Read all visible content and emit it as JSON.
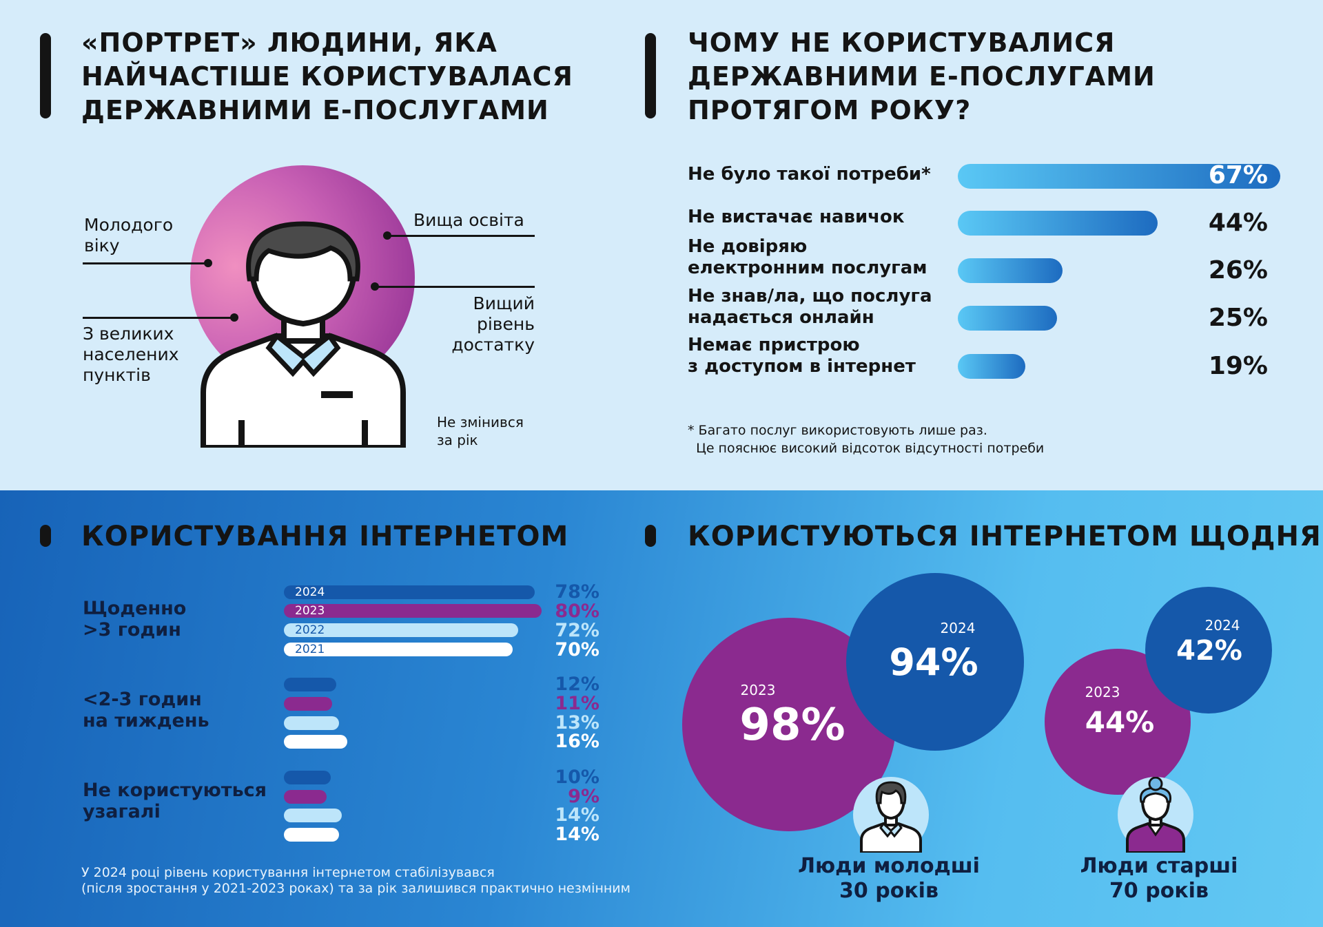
{
  "colors": {
    "accent_purple": "#8b2a8f",
    "accent_blue": "#1558aa",
    "light_blue": "#bde5fa",
    "white": "#ffffff"
  },
  "portrait": {
    "title_lines": [
      "«ПОРТРЕТ» ЛЮДИНИ, ЯКА",
      "НАЙЧАСТІШЕ КОРИСТУВАЛАСЯ",
      "ДЕРЖАВНИМИ Е-ПОСЛУГАМИ"
    ],
    "young_lines": [
      "Молодого",
      "віку"
    ],
    "cities_lines": [
      "З великих",
      "населених",
      "пунктів"
    ],
    "education": "Вища освіта",
    "wealth_lines": [
      "Вищий",
      "рівень",
      "достатку"
    ],
    "unchanged_lines": [
      "Не змінився",
      "за рік"
    ]
  },
  "reasons": {
    "title_lines": [
      "ЧОМУ НЕ КОРИСТУВАЛИСЯ",
      "ДЕРЖАВНИМИ Е-ПОСЛУГАМИ",
      "ПРОТЯГОМ РОКУ?"
    ],
    "items": [
      {
        "label_lines": [
          "Не було такої потреби*"
        ],
        "value": 67,
        "text": "67%"
      },
      {
        "label_lines": [
          "Не вистачає навичок"
        ],
        "value": 44,
        "text": "44%"
      },
      {
        "label_lines": [
          "Не довіряю",
          "електронним послугам"
        ],
        "value": 26,
        "text": "26%"
      },
      {
        "label_lines": [
          "Не знав/ла, що послуга",
          "надається онлайн"
        ],
        "value": 25,
        "text": "25%"
      },
      {
        "label_lines": [
          "Немає пристрою",
          "з доступом в інтернет"
        ],
        "value": 19,
        "text": "19%"
      }
    ],
    "note_lines": [
      "* Багато послуг використовують лише раз.",
      "  Це пояснює високий відсоток відсутності потреби"
    ]
  },
  "internet": {
    "title": "КОРИСТУВАННЯ ІНТЕРНЕТОМ",
    "years": [
      "2024",
      "2023",
      "2022",
      "2021"
    ],
    "year_colors": [
      "#1558aa",
      "#8b2a8f",
      "#bde5fa",
      "#ffffff"
    ],
    "groups": [
      {
        "label_lines": [
          "Щоденно",
          ">3 годин"
        ],
        "values": [
          78,
          80,
          72,
          70
        ],
        "texts": [
          "78%",
          "80%",
          "72%",
          "70%"
        ],
        "show_years": true
      },
      {
        "label_lines": [
          "<2-3 годин",
          "на тиждень"
        ],
        "values": [
          12,
          11,
          13,
          16
        ],
        "texts": [
          "12%",
          "11%",
          "13%",
          "16%"
        ],
        "show_years": false
      },
      {
        "label_lines": [
          "Не користуються",
          "узагалі"
        ],
        "values": [
          10,
          9,
          14,
          14
        ],
        "texts": [
          "10%",
          "9%",
          "14%",
          "14%"
        ],
        "show_years": false
      }
    ],
    "note_lines": [
      "У 2024 році рівень користування інтернетом стабілізувався",
      "(після зростання у 2021-2023 роках) та за рік залишився практично незмінним"
    ]
  },
  "daily": {
    "title": "КОРИСТУЮТЬСЯ ІНТЕРНЕТОМ ЩОДНЯ",
    "young": {
      "y2023": "2023",
      "v2023": "98%",
      "y2024": "2024",
      "v2024": "94%",
      "caption_lines": [
        "Люди молодші",
        "30 років"
      ]
    },
    "old": {
      "y2023": "2023",
      "v2023": "44%",
      "y2024": "2024",
      "v2024": "42%",
      "caption_lines": [
        "Люди старші",
        "70 років"
      ]
    }
  },
  "chart_data": [
    {
      "type": "bar",
      "title": "ЧОМУ НЕ КОРИСТУВАЛИСЯ ДЕРЖАВНИМИ Е-ПОСЛУГАМИ ПРОТЯГОМ РОКУ?",
      "categories": [
        "Не було такої потреби*",
        "Не вистачає навичок",
        "Не довіряю електронним послугам",
        "Не знав/ла, що послуга надається онлайн",
        "Немає пристрою з доступом в інтернет"
      ],
      "values": [
        67,
        44,
        26,
        25,
        19
      ]
    },
    {
      "type": "bar",
      "title": "КОРИСТУВАННЯ ІНТЕРНЕТОМ",
      "categories": [
        "Щоденно >3 годин",
        "<2-3 годин на тиждень",
        "Не користуються узагалі"
      ],
      "series": [
        {
          "name": "2024",
          "values": [
            78,
            12,
            10
          ]
        },
        {
          "name": "2023",
          "values": [
            80,
            11,
            9
          ]
        },
        {
          "name": "2022",
          "values": [
            72,
            13,
            14
          ]
        },
        {
          "name": "2021",
          "values": [
            70,
            16,
            14
          ]
        }
      ]
    },
    {
      "type": "bar",
      "title": "КОРИСТУЮТЬСЯ ІНТЕРНЕТОМ ЩОДНЯ",
      "categories": [
        "Люди молодші 30 років",
        "Люди старші 70 років"
      ],
      "series": [
        {
          "name": "2023",
          "values": [
            98,
            44
          ]
        },
        {
          "name": "2024",
          "values": [
            94,
            42
          ]
        }
      ]
    }
  ]
}
